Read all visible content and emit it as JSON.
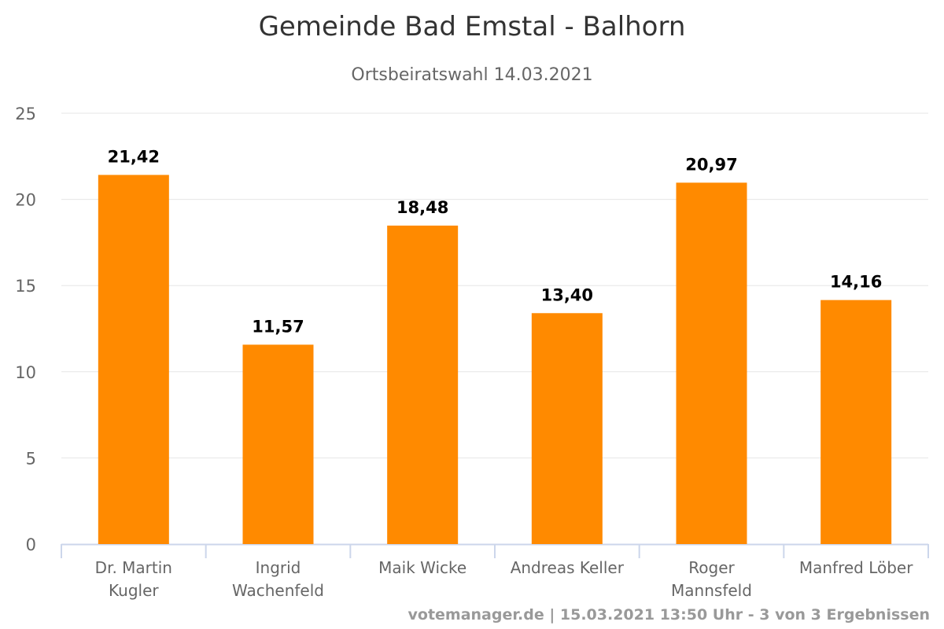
{
  "header": {
    "title": "Gemeinde Bad Emstal - Balhorn",
    "subtitle": "Ortsbeiratswahl 14.03.2021"
  },
  "footer": {
    "credits": "votemanager.de | 15.03.2021 13:50 Uhr - 3 von 3 Ergebnissen"
  },
  "colors": {
    "bar": "#ff8a00",
    "grid": "#e6e6e6",
    "axis": "#ccd6eb"
  },
  "chart_data": {
    "type": "bar",
    "title": "Gemeinde Bad Emstal - Balhorn",
    "subtitle": "Ortsbeiratswahl 14.03.2021",
    "categories": [
      [
        "Dr. Martin",
        "Kugler"
      ],
      [
        "Ingrid",
        "Wachenfeld"
      ],
      [
        "Maik Wicke"
      ],
      [
        "Andreas Keller"
      ],
      [
        "Roger",
        "Mannsfeld"
      ],
      [
        "Manfred Löber"
      ]
    ],
    "values": [
      21.42,
      11.57,
      18.48,
      13.4,
      20.97,
      14.16
    ],
    "data_labels": [
      "21,42",
      "11,57",
      "18,48",
      "13,40",
      "20,97",
      "14,16"
    ],
    "yticks": [
      0,
      5,
      10,
      15,
      20,
      25
    ],
    "ylim": [
      0,
      25
    ],
    "grid": true,
    "legend": false
  }
}
